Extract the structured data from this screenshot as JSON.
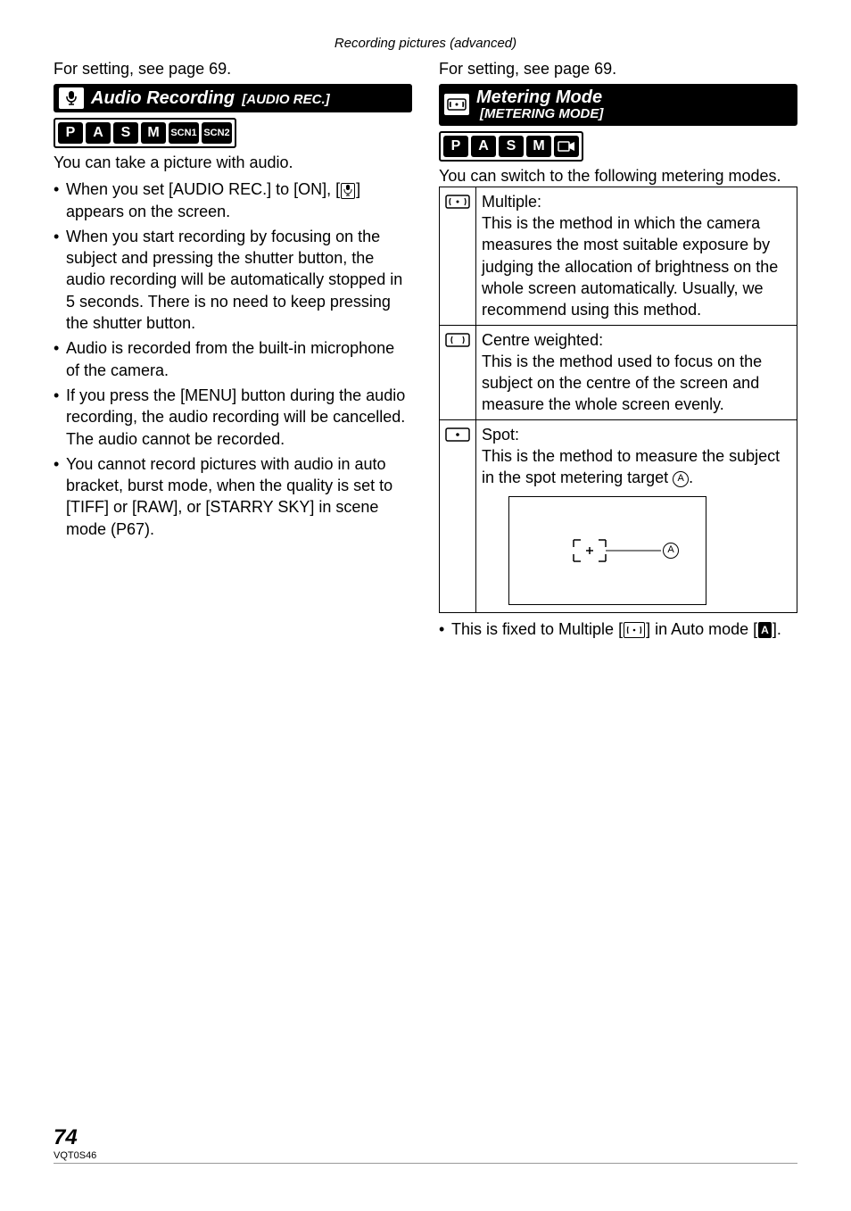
{
  "header": "Recording pictures (advanced)",
  "setting_ref": "For setting, see page 69.",
  "left": {
    "section_title_main": "Audio Recording",
    "section_title_sub": " [AUDIO REC.]",
    "modes": [
      "P",
      "A",
      "S",
      "M",
      "SCN1",
      "SCN2"
    ],
    "intro": "You can take a picture with audio.",
    "bullets": [
      {
        "pre": "When you set [AUDIO REC.] to [ON], [",
        "post": "] appears on the screen."
      },
      {
        "text": "When you start recording by focusing on the subject and pressing the shutter button, the audio recording will be automatically stopped in 5 seconds. There is no need to keep pressing the shutter button."
      },
      {
        "text": "Audio is recorded from the built-in microphone of the camera."
      },
      {
        "text": "If you press the [MENU] button during the audio recording, the audio recording will be cancelled. The audio cannot be recorded."
      },
      {
        "text": "You cannot record pictures with audio in auto bracket, burst mode, when the quality is set to [TIFF] or [RAW], or [STARRY SKY] in scene mode (P67)."
      }
    ]
  },
  "right": {
    "section_title_main": "Metering Mode",
    "section_title_sub": "[METERING MODE]",
    "modes": [
      "P",
      "A",
      "S",
      "M",
      "VIDEO"
    ],
    "intro": "You can switch to the following metering modes.",
    "rows": [
      {
        "icon": "multiple",
        "title": "Multiple:",
        "body": "This is the method in which the camera measures the most suitable exposure by judging the allocation of brightness on the whole screen automatically. Usually, we recommend using this method."
      },
      {
        "icon": "center",
        "title": "Centre weighted:",
        "body": "This is the method used to focus on the subject on the centre of the screen and measure the whole screen evenly."
      },
      {
        "icon": "spot",
        "title": "Spot:",
        "body_pre": "This is the method to measure the subject in the spot metering target ",
        "body_post": ".",
        "callout": "A"
      }
    ],
    "footnote_pre": "This is fixed to Multiple [",
    "footnote_mid": "] in Auto mode [",
    "footnote_post": "]."
  },
  "footer": {
    "page": "74",
    "code": "VQT0S46"
  }
}
